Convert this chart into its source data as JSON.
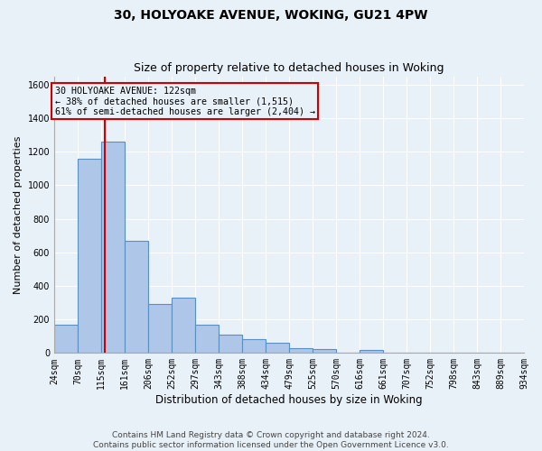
{
  "title1": "30, HOLYOAKE AVENUE, WOKING, GU21 4PW",
  "title2": "Size of property relative to detached houses in Woking",
  "xlabel": "Distribution of detached houses by size in Woking",
  "ylabel": "Number of detached properties",
  "bin_labels": [
    "24sqm",
    "70sqm",
    "115sqm",
    "161sqm",
    "206sqm",
    "252sqm",
    "297sqm",
    "343sqm",
    "388sqm",
    "434sqm",
    "479sqm",
    "525sqm",
    "570sqm",
    "616sqm",
    "661sqm",
    "707sqm",
    "752sqm",
    "798sqm",
    "843sqm",
    "889sqm",
    "934sqm"
  ],
  "bin_edges": [
    24,
    70,
    115,
    161,
    206,
    252,
    297,
    343,
    388,
    434,
    479,
    525,
    570,
    616,
    661,
    707,
    752,
    798,
    843,
    889,
    934
  ],
  "bar_heights": [
    170,
    1160,
    1260,
    670,
    290,
    330,
    170,
    110,
    80,
    60,
    30,
    25,
    0,
    20,
    0,
    0,
    0,
    0,
    0,
    0
  ],
  "bar_color": "#aec6e8",
  "bar_edge_color": "#5a8fc0",
  "property_size": 122,
  "red_line_color": "#cc0000",
  "ylim": [
    0,
    1650
  ],
  "yticks": [
    0,
    200,
    400,
    600,
    800,
    1000,
    1200,
    1400,
    1600
  ],
  "annotation_box_text": "30 HOLYOAKE AVENUE: 122sqm\n← 38% of detached houses are smaller (1,515)\n61% of semi-detached houses are larger (2,404) →",
  "annotation_box_color": "#cc0000",
  "footer_line1": "Contains HM Land Registry data © Crown copyright and database right 2024.",
  "footer_line2": "Contains public sector information licensed under the Open Government Licence v3.0.",
  "bg_color": "#e8f0f8",
  "grid_color": "#ffffff",
  "title1_fontsize": 10,
  "title2_fontsize": 9,
  "ylabel_fontsize": 8,
  "xlabel_fontsize": 8.5,
  "tick_fontsize": 7,
  "footer_fontsize": 6.5
}
